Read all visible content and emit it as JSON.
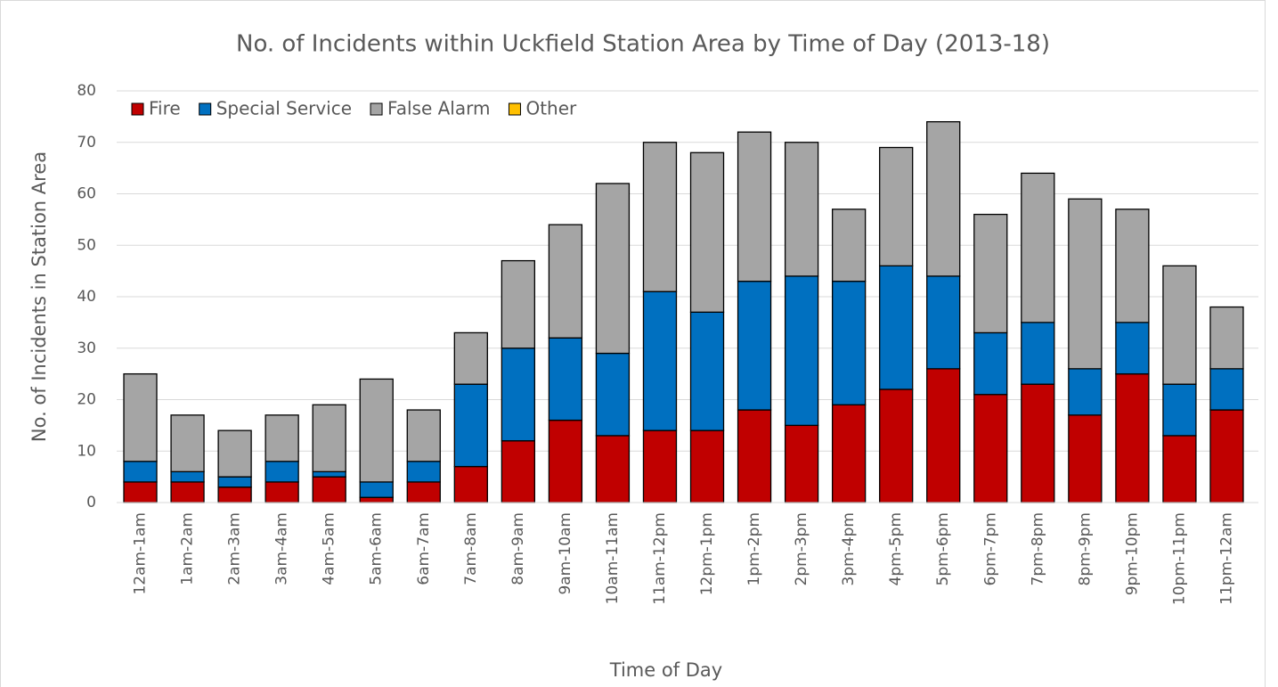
{
  "chart_data": {
    "type": "stacked_bar",
    "title": "No. of Incidents within Uckfield Station Area by Time of Day (2013-18)",
    "x_label": "Time of Day",
    "y_label": "No. of Incidents in Station Area",
    "categories": [
      "12am-1am",
      "1am-2am",
      "2am-3am",
      "3am-4am",
      "4am-5am",
      "5am-6am",
      "6am-7am",
      "7am-8am",
      "8am-9am",
      "9am-10am",
      "10am-11am",
      "11am-12pm",
      "12pm-1pm",
      "1pm-2pm",
      "2pm-3pm",
      "3pm-4pm",
      "4pm-5pm",
      "5pm-6pm",
      "6pm-7pm",
      "7pm-8pm",
      "8pm-9pm",
      "9pm-10pm",
      "10pm-11pm",
      "11pm-12am"
    ],
    "series": [
      {
        "name": "Fire",
        "color": "#c00000",
        "values": [
          4,
          4,
          3,
          4,
          5,
          1,
          4,
          7,
          12,
          16,
          13,
          14,
          14,
          18,
          15,
          19,
          22,
          26,
          21,
          23,
          17,
          25,
          13,
          18
        ]
      },
      {
        "name": "Special Service",
        "color": "#0070c0",
        "values": [
          4,
          2,
          2,
          4,
          1,
          3,
          4,
          16,
          18,
          16,
          16,
          27,
          23,
          25,
          29,
          24,
          24,
          18,
          12,
          12,
          9,
          10,
          10,
          8
        ]
      },
      {
        "name": "False Alarm",
        "color": "#a5a5a5",
        "values": [
          17,
          11,
          9,
          9,
          13,
          20,
          10,
          10,
          17,
          22,
          33,
          29,
          31,
          29,
          26,
          14,
          23,
          30,
          23,
          29,
          33,
          22,
          23,
          12
        ]
      },
      {
        "name": "Other",
        "color": "#ffc000",
        "values": [
          0,
          0,
          0,
          0,
          0,
          0,
          0,
          0,
          0,
          0,
          0,
          0,
          0,
          0,
          0,
          0,
          0,
          0,
          0,
          0,
          0,
          0,
          0,
          0
        ]
      }
    ],
    "ylim": [
      0,
      80
    ],
    "yticks": [
      0,
      10,
      20,
      30,
      40,
      50,
      60,
      70,
      80
    ],
    "grid": true,
    "legend": "top-left"
  }
}
